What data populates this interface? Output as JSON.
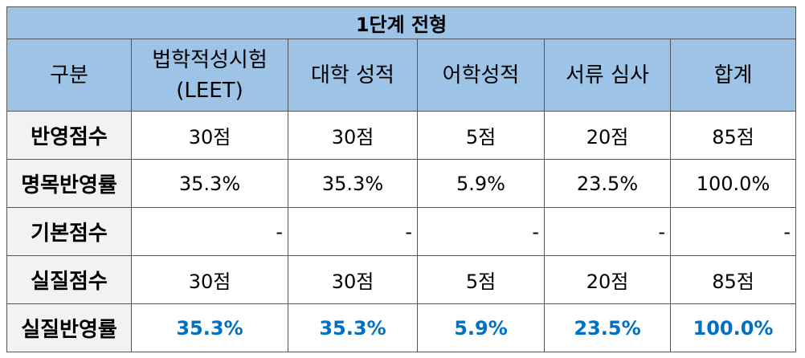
{
  "header": {
    "title": "1단계 전형"
  },
  "table": {
    "columns": [
      [
        "구분"
      ],
      [
        "법학적성시험",
        "(LEET)"
      ],
      [
        "대학 성적"
      ],
      [
        "어학성적"
      ],
      [
        "서류 심사"
      ],
      [
        "합계"
      ]
    ],
    "rows": [
      {
        "label": "반영점수",
        "cells": [
          "30점",
          "30점",
          "5점",
          "20점",
          "85점"
        ]
      },
      {
        "label": "명목반영률",
        "cells": [
          "35.3%",
          "35.3%",
          "5.9%",
          "23.5%",
          "100.0%"
        ]
      },
      {
        "label": "기본점수",
        "cells": [
          "-",
          "-",
          "-",
          "-",
          "-"
        ]
      },
      {
        "label": "실질점수",
        "cells": [
          "30점",
          "30점",
          "5점",
          "20점",
          "85점"
        ]
      },
      {
        "label": "실질반영률",
        "cells": [
          "35.3%",
          "35.3%",
          "5.9%",
          "23.5%",
          "100.0%"
        ]
      }
    ]
  }
}
